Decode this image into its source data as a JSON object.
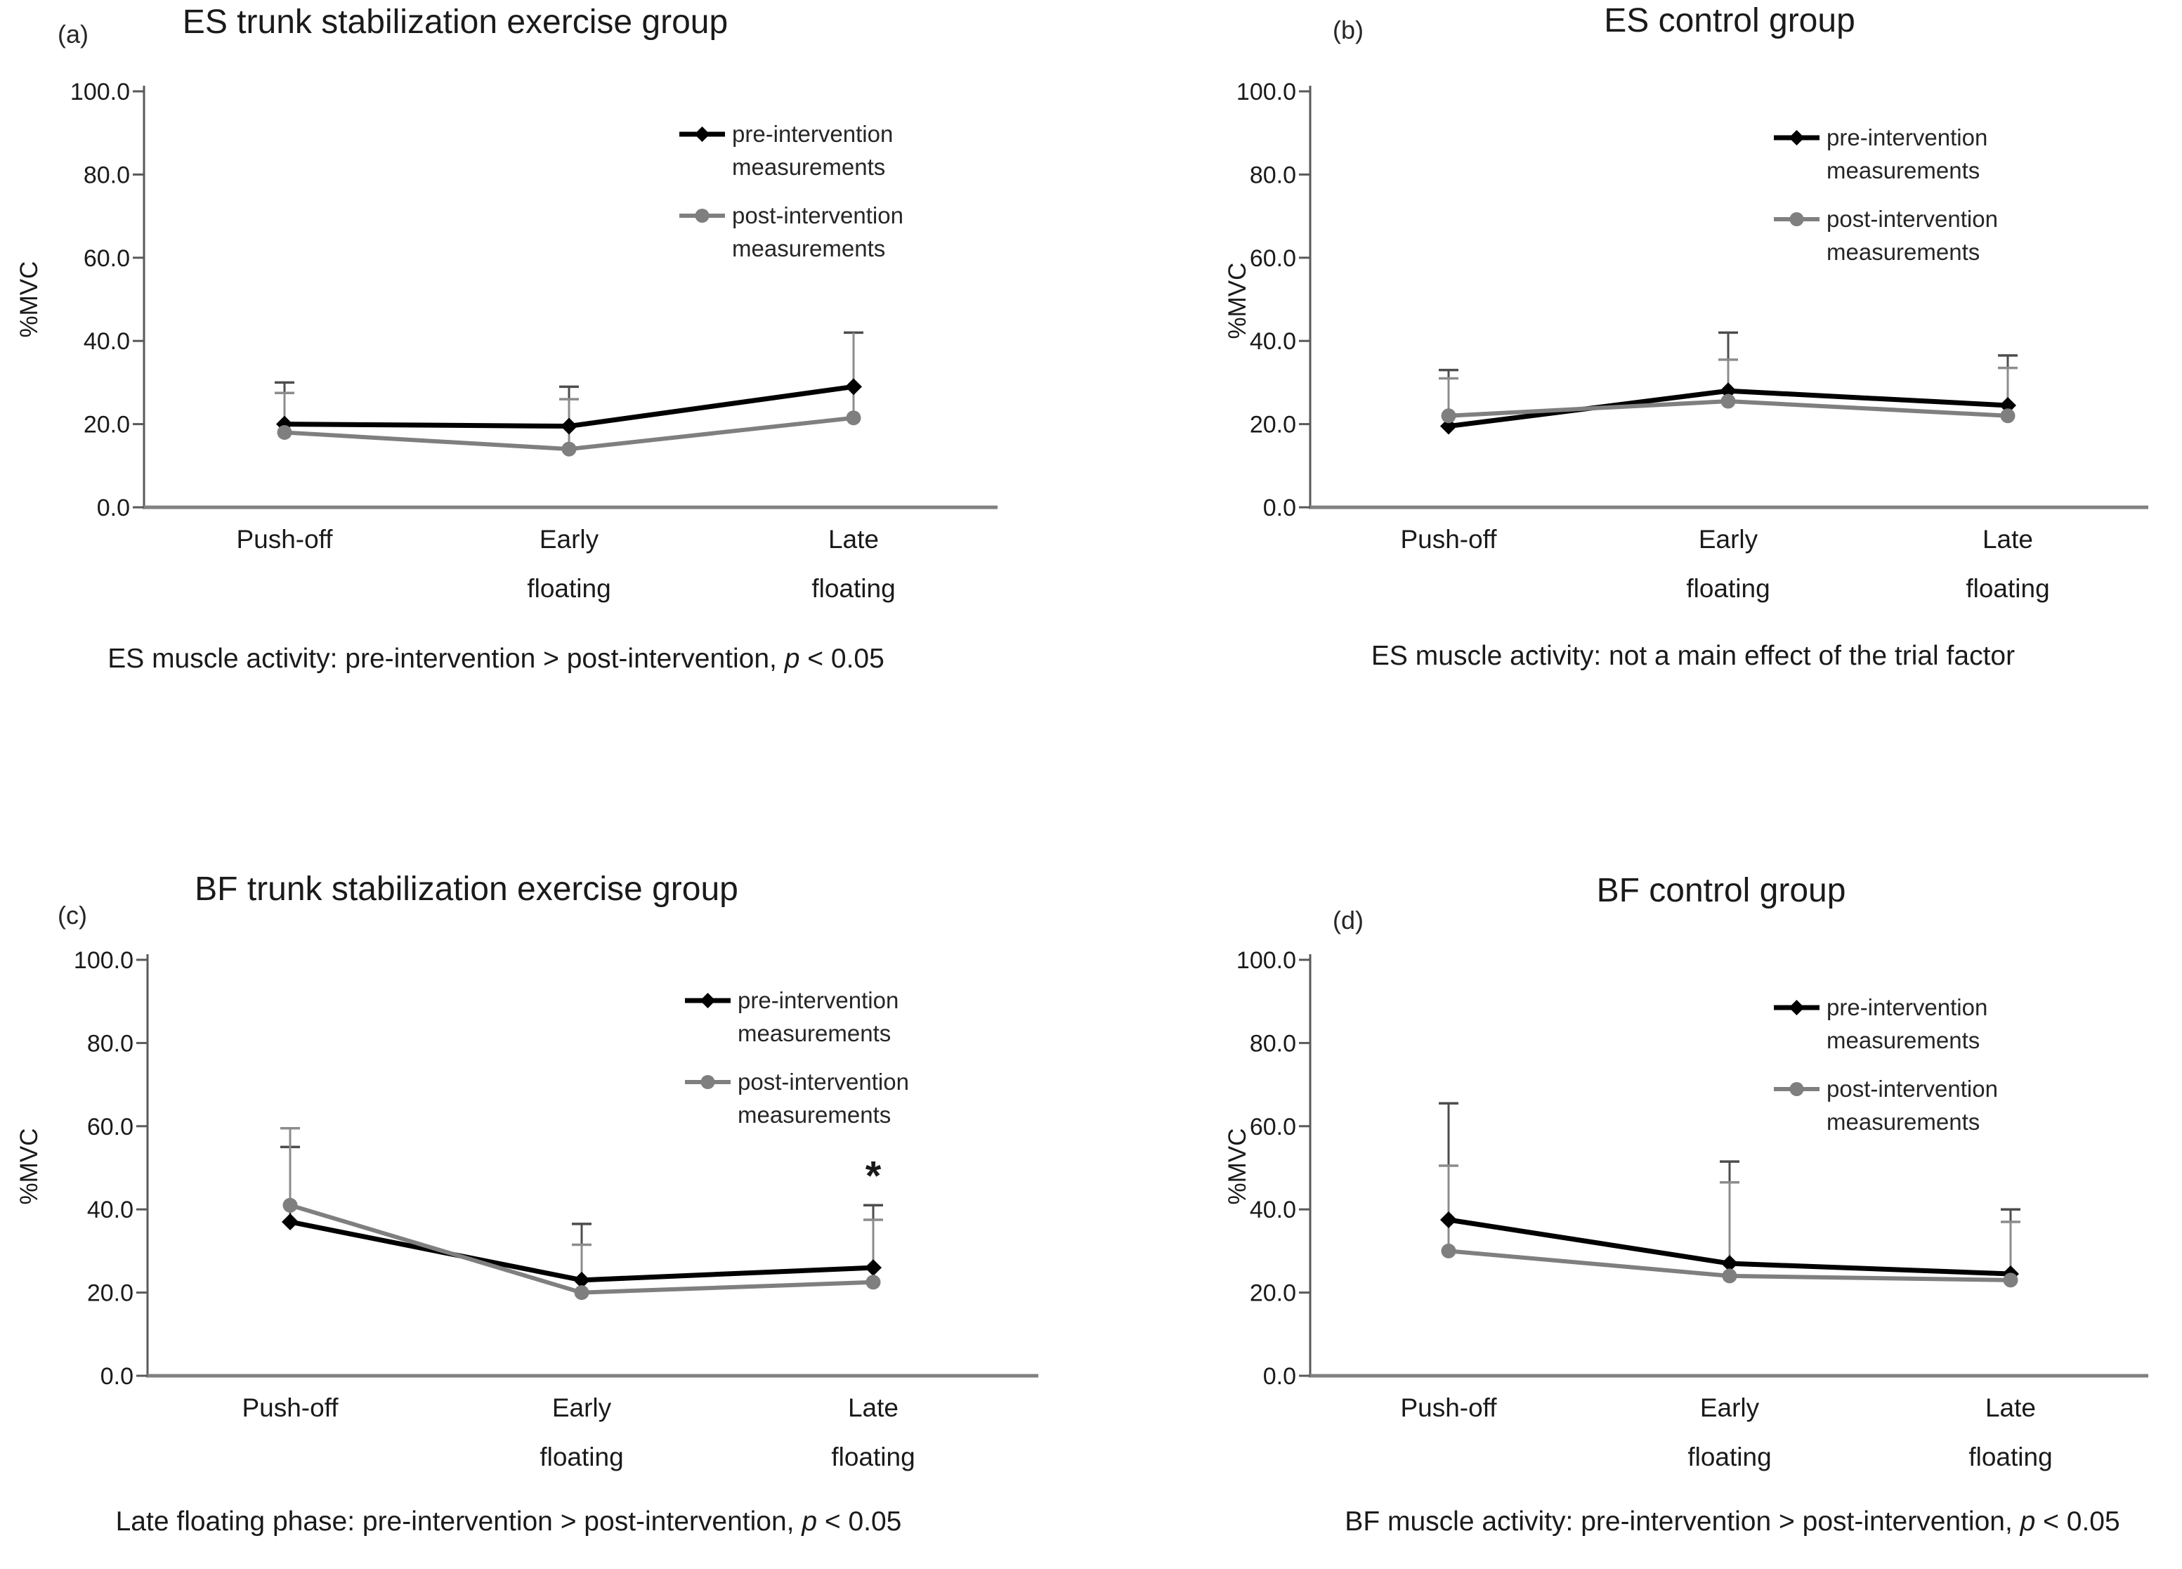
{
  "figure": {
    "background": "#ffffff",
    "text_color": "#1a1a1a",
    "axis_color": "#595959",
    "baseline_color": "#808080",
    "pre_color": "#000000",
    "post_color": "#7f7f7f"
  },
  "chart_data": [
    {
      "id": "a",
      "type": "line",
      "panel_label": "(a)",
      "title": "ES trunk stabilization exercise group",
      "ylabel": "%MVC",
      "ylim": [
        0,
        100
      ],
      "yticks": [
        "0.0",
        "20.0",
        "40.0",
        "60.0",
        "80.0",
        "100.0"
      ],
      "ytick_values": [
        0,
        20,
        40,
        60,
        80,
        100
      ],
      "categories": [
        [
          "Push-off"
        ],
        [
          "Early",
          "floating"
        ],
        [
          "Late",
          "floating"
        ]
      ],
      "legend_position": "upper-right",
      "series": [
        {
          "name": "pre-intervention measurements",
          "label_lines": [
            "pre-intervention",
            "measurements"
          ],
          "color": "#000000",
          "marker": "diamond",
          "values": [
            20.0,
            19.5,
            29.0
          ],
          "err_top": [
            30.0,
            29.0,
            42.0
          ],
          "err_cap": [
            true,
            true,
            true
          ]
        },
        {
          "name": "post-intervention measurements",
          "label_lines": [
            "post-intervention",
            "measurements"
          ],
          "color": "#7f7f7f",
          "marker": "circle",
          "values": [
            18.0,
            14.0,
            21.5
          ],
          "err_top": [
            27.5,
            26.0,
            42.0
          ],
          "err_cap": [
            true,
            true,
            false
          ]
        }
      ],
      "annotation": null,
      "caption": {
        "main": "ES muscle activity: pre-intervention > post-intervention, ",
        "p": "p",
        "tail": " < 0.05"
      }
    },
    {
      "id": "b",
      "type": "line",
      "panel_label": "(b)",
      "title": "ES control group",
      "ylabel": "%MVC",
      "ylim": [
        0,
        100
      ],
      "yticks": [
        "0.0",
        "20.0",
        "40.0",
        "60.0",
        "80.0",
        "100.0"
      ],
      "ytick_values": [
        0,
        20,
        40,
        60,
        80,
        100
      ],
      "categories": [
        [
          "Push-off"
        ],
        [
          "Early",
          "floating"
        ],
        [
          "Late",
          "floating"
        ]
      ],
      "legend_position": "upper-right",
      "series": [
        {
          "name": "pre-intervention measurements",
          "label_lines": [
            "pre-intervention",
            "measurements"
          ],
          "color": "#000000",
          "marker": "diamond",
          "values": [
            19.5,
            28.0,
            24.5
          ],
          "err_top": [
            33.0,
            42.0,
            36.5
          ],
          "err_cap": [
            true,
            true,
            true
          ]
        },
        {
          "name": "post-intervention measurements",
          "label_lines": [
            "post-intervention",
            "measurements"
          ],
          "color": "#7f7f7f",
          "marker": "circle",
          "values": [
            22.0,
            25.5,
            22.0
          ],
          "err_top": [
            31.0,
            35.5,
            33.5
          ],
          "err_cap": [
            true,
            true,
            true
          ]
        }
      ],
      "annotation": null,
      "caption": {
        "main": "ES muscle activity: not a main effect of the trial factor",
        "p": "",
        "tail": ""
      }
    },
    {
      "id": "c",
      "type": "line",
      "panel_label": "(c)",
      "title": "BF trunk stabilization exercise group",
      "ylabel": "%MVC",
      "ylim": [
        0,
        100
      ],
      "yticks": [
        "0.0",
        "20.0",
        "40.0",
        "60.0",
        "80.0",
        "100.0"
      ],
      "ytick_values": [
        0,
        20,
        40,
        60,
        80,
        100
      ],
      "categories": [
        [
          "Push-off"
        ],
        [
          "Early",
          "floating"
        ],
        [
          "Late",
          "floating"
        ]
      ],
      "legend_position": "upper-right",
      "series": [
        {
          "name": "pre-intervention measurements",
          "label_lines": [
            "pre-intervention",
            "measurements"
          ],
          "color": "#000000",
          "marker": "diamond",
          "values": [
            37.0,
            23.0,
            26.0
          ],
          "err_top": [
            55.0,
            36.5,
            41.0
          ],
          "err_cap": [
            true,
            true,
            true
          ]
        },
        {
          "name": "post-intervention measurements",
          "label_lines": [
            "post-intervention",
            "measurements"
          ],
          "color": "#7f7f7f",
          "marker": "circle",
          "values": [
            41.0,
            20.0,
            22.5
          ],
          "err_top": [
            59.5,
            31.5,
            37.5
          ],
          "err_cap": [
            true,
            true,
            true
          ]
        }
      ],
      "annotation": {
        "text": "*",
        "category_index": 2
      },
      "caption": {
        "main": "Late floating phase: pre-intervention > post-intervention, ",
        "p": "p",
        "tail": " < 0.05"
      }
    },
    {
      "id": "d",
      "type": "line",
      "panel_label": "(d)",
      "title": "BF control group",
      "ylabel": "%MVC",
      "ylim": [
        0,
        100
      ],
      "yticks": [
        "0.0",
        "20.0",
        "40.0",
        "60.0",
        "80.0",
        "100.0"
      ],
      "ytick_values": [
        0,
        20,
        40,
        60,
        80,
        100
      ],
      "categories": [
        [
          "Push-off"
        ],
        [
          "Early",
          "floating"
        ],
        [
          "Late",
          "floating"
        ]
      ],
      "legend_position": "upper-right",
      "series": [
        {
          "name": "pre-intervention measurements",
          "label_lines": [
            "pre-intervention",
            "measurements"
          ],
          "color": "#000000",
          "marker": "diamond",
          "values": [
            37.5,
            27.0,
            24.5
          ],
          "err_top": [
            65.5,
            51.5,
            40.0
          ],
          "err_cap": [
            true,
            true,
            true
          ]
        },
        {
          "name": "post-intervention measurements",
          "label_lines": [
            "post-intervention",
            "measurements"
          ],
          "color": "#7f7f7f",
          "marker": "circle",
          "values": [
            30.0,
            24.0,
            23.0
          ],
          "err_top": [
            50.5,
            46.5,
            37.0
          ],
          "err_cap": [
            true,
            true,
            true
          ]
        }
      ],
      "annotation": null,
      "caption": {
        "main": "BF muscle activity: pre-intervention > post-intervention, ",
        "p": "p",
        "tail": " < 0.05"
      }
    }
  ]
}
